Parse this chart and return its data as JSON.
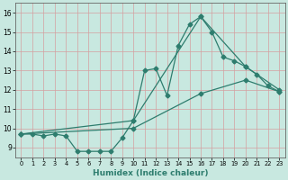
{
  "xlabel": "Humidex (Indice chaleur)",
  "xlim": [
    -0.5,
    23.5
  ],
  "ylim": [
    8.5,
    16.5
  ],
  "yticks": [
    9,
    10,
    11,
    12,
    13,
    14,
    15,
    16
  ],
  "xticks": [
    0,
    1,
    2,
    3,
    4,
    5,
    6,
    7,
    8,
    9,
    10,
    11,
    12,
    13,
    14,
    15,
    16,
    17,
    18,
    19,
    20,
    21,
    22,
    23
  ],
  "bg_color": "#c8e8e0",
  "grid_color": "#d4a0a0",
  "line_color": "#2e7d6e",
  "line1_x": [
    0,
    1,
    2,
    3,
    4,
    5,
    6,
    7,
    8,
    9,
    10,
    11,
    12,
    13,
    14,
    15,
    16,
    17,
    18,
    19,
    20,
    21,
    22,
    23
  ],
  "line1_y": [
    9.7,
    9.7,
    9.6,
    9.7,
    9.6,
    8.8,
    8.8,
    8.8,
    8.8,
    9.5,
    10.4,
    13.0,
    13.1,
    11.7,
    14.3,
    15.4,
    15.8,
    15.0,
    13.7,
    13.5,
    13.2,
    12.8,
    12.2,
    11.9
  ],
  "line2_x": [
    0,
    10,
    16,
    20,
    23
  ],
  "line2_y": [
    9.7,
    10.4,
    15.8,
    13.2,
    12.0
  ],
  "line3_x": [
    0,
    10,
    16,
    20,
    23
  ],
  "line3_y": [
    9.7,
    10.0,
    11.8,
    12.5,
    11.9
  ],
  "marker": "D",
  "markersize": 2.5,
  "linewidth": 0.9
}
